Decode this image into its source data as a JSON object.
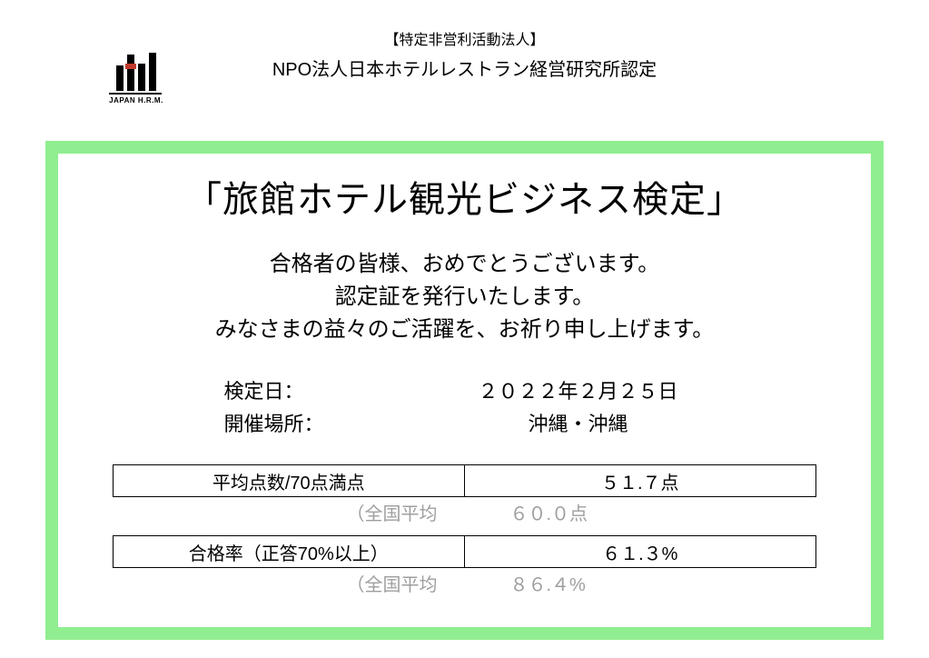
{
  "header": {
    "org_small": "【特定非営利活動法人】",
    "org_main": "NPO法人日本ホテルレストラン経営研究所認定",
    "logo_text": "JAPAN H.R.M."
  },
  "certificate": {
    "title": "「旅館ホテル観光ビジネス検定」",
    "message_line1": "合格者の皆様、おめでとうございます。",
    "message_line2": "認定証を発行いたします。",
    "message_line3": "みなさまの益々のご活躍を、お祈り申し上げます。",
    "date_label": "検定日：",
    "date_value": "２０２２年２月２５日",
    "location_label": "開催場所：",
    "location_value": "沖縄・沖縄"
  },
  "table": {
    "row1_label": "平均点数/70点満点",
    "row1_value": "５１.７点",
    "row1_sub_label": "（全国平均",
    "row1_sub_value": "６０.０点",
    "row2_label": "合格率（正答70%以上）",
    "row2_value": "６１.３%",
    "row2_sub_label": "（全国平均",
    "row2_sub_value": "８６.４%"
  },
  "colors": {
    "border_green": "#90ee90",
    "gray_text": "#9e9e9e",
    "logo_red": "#c0392b"
  }
}
